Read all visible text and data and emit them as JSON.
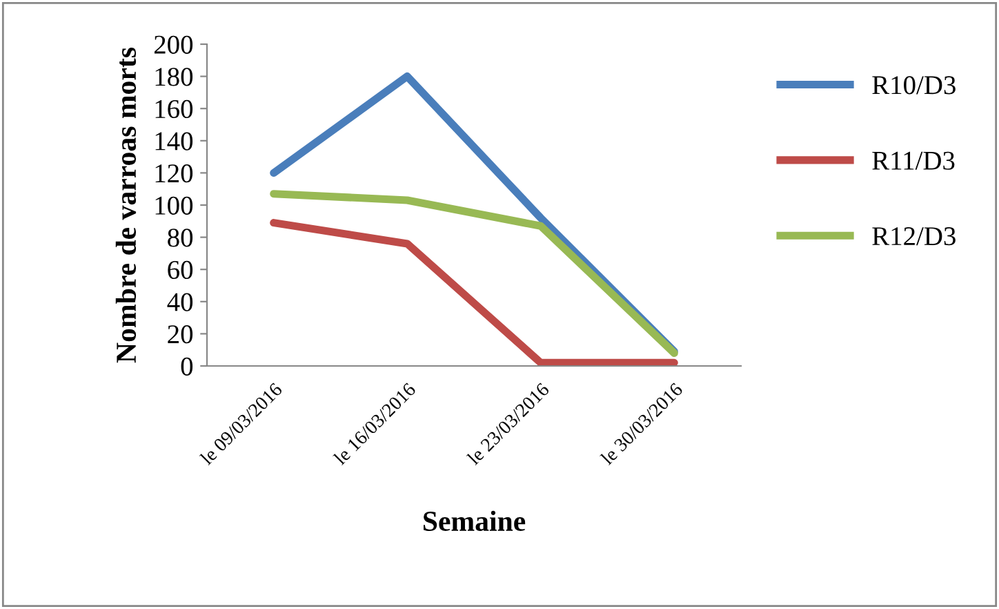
{
  "chart_data": {
    "type": "line",
    "xlabel": "Semaine",
    "ylabel": "Nombre de varroas morts",
    "categories": [
      "le 09/03/2016",
      "le 16/03/2016",
      "le 23/03/2016",
      "le 30/03/2016"
    ],
    "series": [
      {
        "name": "R10/D3",
        "color": "#4a7ebb",
        "values": [
          120,
          180,
          92,
          9
        ]
      },
      {
        "name": "R11/D3",
        "color": "#be4b48",
        "values": [
          89,
          76,
          2,
          2
        ]
      },
      {
        "name": "R12/D3",
        "color": "#98b954",
        "values": [
          107,
          103,
          87,
          8
        ]
      }
    ],
    "ylim": [
      0,
      200
    ],
    "yticks": [
      0,
      20,
      40,
      60,
      80,
      100,
      120,
      140,
      160,
      180,
      200
    ],
    "grid": false,
    "legend": "right",
    "marker": "none",
    "line_style": "solid"
  }
}
